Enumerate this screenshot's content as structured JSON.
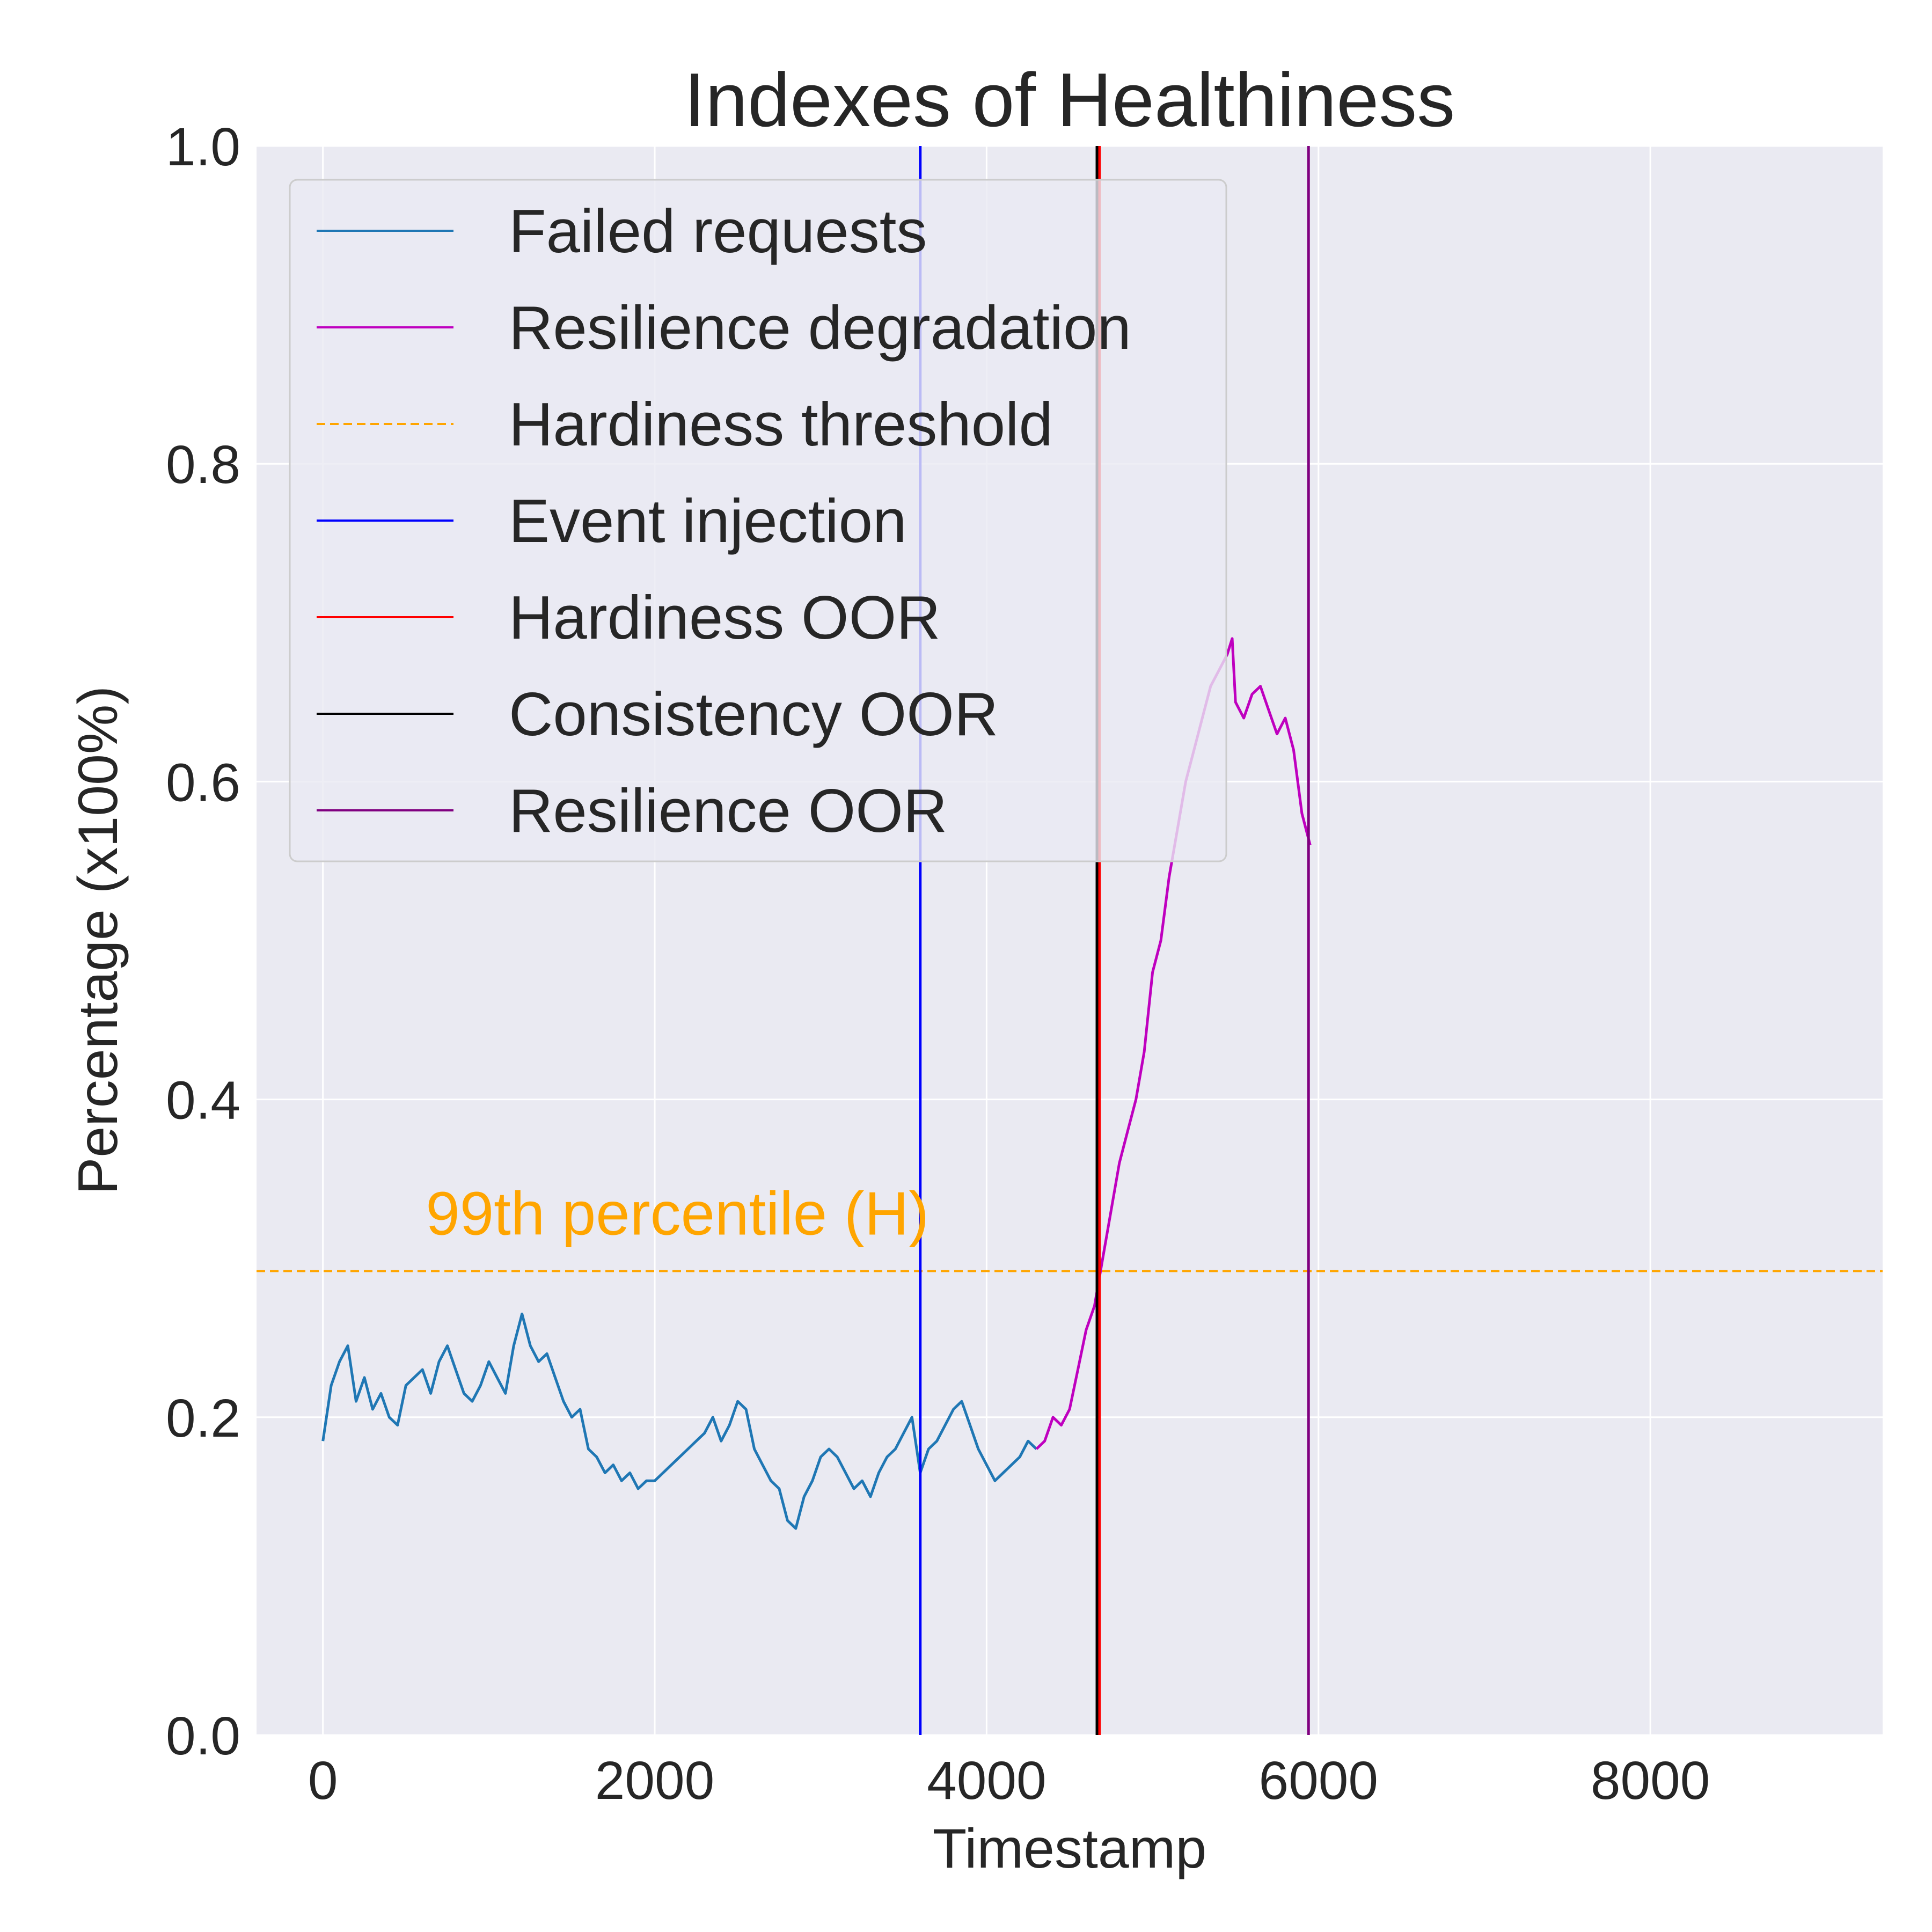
{
  "chart_data": {
    "type": "line",
    "title": "Indexes of Healthiness",
    "xlabel": "Timestamp",
    "ylabel": "Percentage (x100%)",
    "xlim": [
      -400,
      9400
    ],
    "ylim": [
      0,
      1.0
    ],
    "xticks": [
      0,
      2000,
      4000,
      6000,
      8000
    ],
    "xtick_labels": [
      "0",
      "2000",
      "4000",
      "6000",
      "8000"
    ],
    "yticks": [
      0.0,
      0.2,
      0.4,
      0.6,
      0.8,
      1.0
    ],
    "ytick_labels": [
      "0.0",
      "0.2",
      "0.4",
      "0.6",
      "0.8",
      "1.0"
    ],
    "grid": true,
    "legend_position": "upper-left",
    "series": [
      {
        "name": "Failed requests",
        "color": "#1f77b4",
        "style": "solid",
        "x": [
          0,
          50,
          100,
          150,
          200,
          250,
          300,
          350,
          400,
          450,
          500,
          550,
          600,
          650,
          700,
          750,
          800,
          850,
          900,
          950,
          1000,
          1050,
          1100,
          1150,
          1200,
          1250,
          1300,
          1350,
          1400,
          1450,
          1500,
          1550,
          1600,
          1650,
          1700,
          1750,
          1800,
          1850,
          1900,
          1950,
          2000,
          2050,
          2100,
          2150,
          2200,
          2250,
          2300,
          2350,
          2400,
          2450,
          2500,
          2550,
          2600,
          2650,
          2700,
          2750,
          2800,
          2850,
          2900,
          2950,
          3000,
          3050,
          3100,
          3150,
          3200,
          3250,
          3300,
          3350,
          3400,
          3450,
          3500,
          3550,
          3600,
          3650,
          3700,
          3750,
          3800,
          3850,
          3900,
          3950,
          4000,
          4050,
          4100,
          4150,
          4200,
          4250,
          4300
        ],
        "y": [
          0.185,
          0.22,
          0.235,
          0.245,
          0.21,
          0.225,
          0.205,
          0.215,
          0.2,
          0.195,
          0.22,
          0.225,
          0.23,
          0.215,
          0.235,
          0.245,
          0.23,
          0.215,
          0.21,
          0.22,
          0.235,
          0.225,
          0.215,
          0.245,
          0.265,
          0.245,
          0.235,
          0.24,
          0.225,
          0.21,
          0.2,
          0.205,
          0.18,
          0.175,
          0.165,
          0.17,
          0.16,
          0.165,
          0.155,
          0.16,
          0.16,
          0.165,
          0.17,
          0.175,
          0.18,
          0.185,
          0.19,
          0.2,
          0.185,
          0.195,
          0.21,
          0.205,
          0.18,
          0.17,
          0.16,
          0.155,
          0.135,
          0.13,
          0.15,
          0.16,
          0.175,
          0.18,
          0.175,
          0.165,
          0.155,
          0.16,
          0.15,
          0.165,
          0.175,
          0.18,
          0.19,
          0.2,
          0.165,
          0.18,
          0.185,
          0.195,
          0.205,
          0.21,
          0.195,
          0.18,
          0.17,
          0.16,
          0.165,
          0.17,
          0.175,
          0.185,
          0.18
        ]
      },
      {
        "name": "Resilience degradation",
        "color": "#bf00bf",
        "style": "solid",
        "x": [
          4300,
          4350,
          4400,
          4450,
          4500,
          4550,
          4600,
          4650,
          4700,
          4750,
          4800,
          4850,
          4900,
          4950,
          5000,
          5050,
          5100,
          5150,
          5200,
          5250,
          5300,
          5350,
          5400,
          5450,
          5480,
          5500,
          5550,
          5600,
          5650,
          5700,
          5750,
          5800,
          5850,
          5900,
          5950
        ],
        "y": [
          0.18,
          0.185,
          0.2,
          0.195,
          0.205,
          0.23,
          0.255,
          0.27,
          0.3,
          0.33,
          0.36,
          0.38,
          0.4,
          0.43,
          0.48,
          0.5,
          0.54,
          0.57,
          0.6,
          0.62,
          0.64,
          0.66,
          0.67,
          0.68,
          0.69,
          0.65,
          0.64,
          0.655,
          0.66,
          0.645,
          0.63,
          0.64,
          0.62,
          0.58,
          0.56
        ]
      }
    ],
    "hlines": [
      {
        "name": "Hardiness threshold",
        "y": 0.292,
        "color": "#ffa500",
        "style": "dashed"
      }
    ],
    "vlines": [
      {
        "name": "Event injection",
        "x": 3600,
        "color": "#0000ff"
      },
      {
        "name": "Hardiness OOR",
        "x": 4680,
        "color": "#ff0000"
      },
      {
        "name": "Consistency OOR",
        "x": 4665,
        "color": "#000000"
      },
      {
        "name": "Resilience OOR",
        "x": 5940,
        "color": "#800080"
      }
    ],
    "annotations": [
      {
        "text": "99th percentile (H)",
        "x": 620,
        "y": 0.315,
        "color": "#ffa500"
      }
    ],
    "legend": [
      {
        "label": "Failed requests",
        "color": "#1f77b4",
        "style": "solid"
      },
      {
        "label": "Resilience degradation",
        "color": "#bf00bf",
        "style": "solid"
      },
      {
        "label": "Hardiness threshold",
        "color": "#ffa500",
        "style": "dashed"
      },
      {
        "label": "Event injection",
        "color": "#0000ff",
        "style": "solid"
      },
      {
        "label": "Hardiness OOR",
        "color": "#ff0000",
        "style": "solid"
      },
      {
        "label": "Consistency OOR",
        "color": "#000000",
        "style": "solid"
      },
      {
        "label": "Resilience OOR",
        "color": "#800080",
        "style": "solid"
      }
    ]
  }
}
